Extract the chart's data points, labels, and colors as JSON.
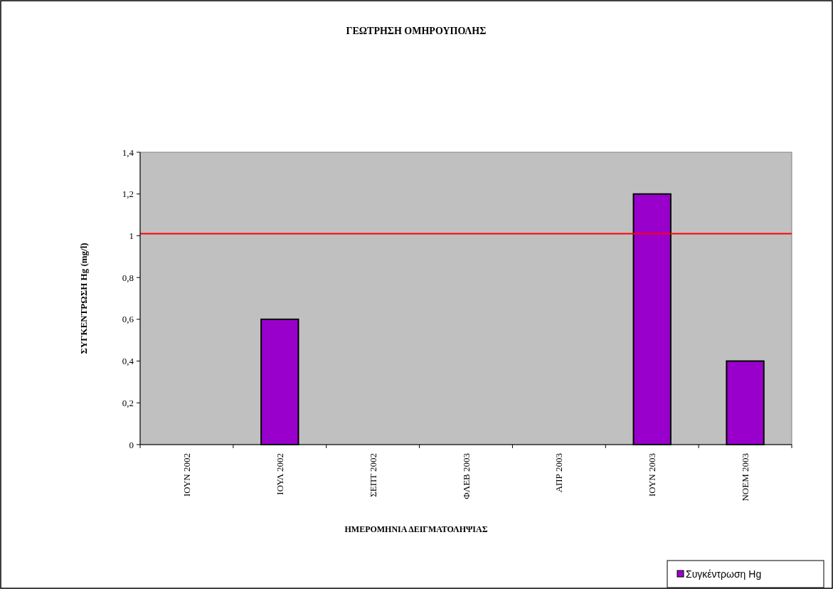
{
  "chart_data": {
    "type": "bar",
    "title": "ΓΕΩΤΡΗΣΗ ΟΜΗΡΟΥΠΟΛΗΣ",
    "xlabel": "ΗΜΕΡΟΜΗΝΙΑ ΔΕΙΓΜΑΤΟΛΗΨΙΑΣ",
    "ylabel": "ΣΥΓΚΕΝΤΡΩΣΗ Hg (mg/l)",
    "categories": [
      "ΙΟΥΝ 2002",
      "ΙΟΥΛ 2002",
      "ΣΕΠΤ 2002",
      "ΦΛΕΒ 2003",
      "ΑΠΡ 2003",
      "ΙΟΥΝ 2003",
      "ΝΟΕΜ 2003"
    ],
    "series": [
      {
        "name": "Συγκέντρωση Hg",
        "color": "#9900cc",
        "values": [
          0,
          0.6,
          0,
          0,
          0,
          1.2,
          0.4
        ]
      }
    ],
    "ylim": [
      0,
      1.4
    ],
    "yticks": [
      0,
      {
        "value": 0.2,
        "label": "0,2"
      },
      {
        "value": 0.4,
        "label": "0,4"
      },
      {
        "value": 0.6,
        "label": "0,6"
      },
      {
        "value": 0.8,
        "label": "0,8"
      },
      1,
      {
        "value": 1.2,
        "label": "1,2"
      },
      {
        "value": 1.4,
        "label": "1,4"
      }
    ],
    "ref_lines": [
      {
        "axis": "y",
        "value": 1.01,
        "color": "#ff0000"
      }
    ],
    "grid": false,
    "legend": "bottom right"
  }
}
